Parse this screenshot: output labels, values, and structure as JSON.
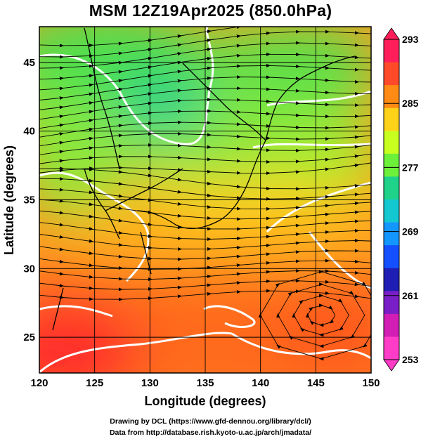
{
  "title": "MSM 12Z19Apr2025 (850.0hPa)",
  "map": {
    "lon_range": [
      120,
      150
    ],
    "lat_range": [
      22.4,
      47.6
    ],
    "xlabel": "Longitude (degrees)",
    "ylabel": "Latitude  (degrees)",
    "x_ticks": [
      "120",
      "125",
      "130",
      "135",
      "140",
      "145",
      "150"
    ],
    "y_ticks": [
      "25",
      "30",
      "35",
      "40",
      "45"
    ],
    "grid": true
  },
  "colorbar": {
    "labels": [
      "293",
      "285",
      "277",
      "269",
      "261",
      "253"
    ],
    "min": 253,
    "max": 293,
    "colors": [
      "#ff1e5a",
      "#ff4a2a",
      "#ff8a14",
      "#ffd21a",
      "#c8ff1e",
      "#6cf03a",
      "#1ed28a",
      "#14c8d2",
      "#1496ff",
      "#1450ff",
      "#1e1eb4",
      "#7a1ec8",
      "#d21eb4",
      "#ff3cc8"
    ]
  },
  "credits": {
    "line1": "Drawing by DCL (https://www.gfd-dennou.org/library/dcl/)",
    "line2": "Data from http://database.rish.kyoto-u.ac.jp/arch/jmadata/"
  }
}
